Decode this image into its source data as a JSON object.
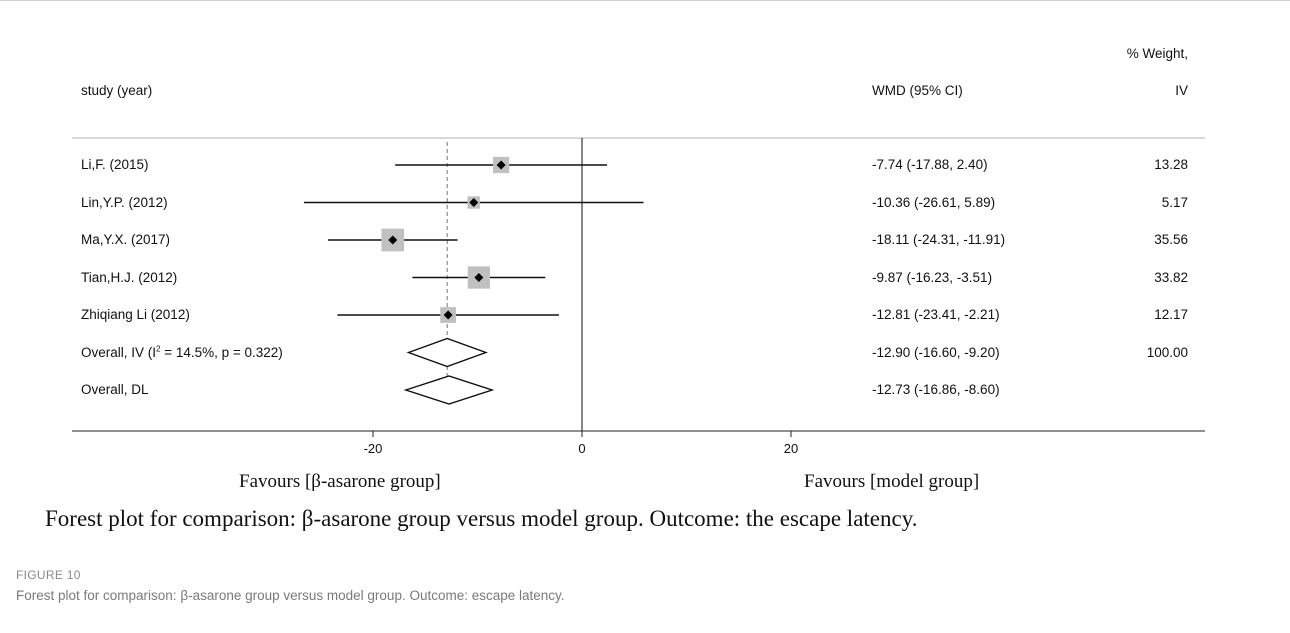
{
  "chart_data": {
    "type": "forest",
    "headers": {
      "study": "study (year)",
      "effect": "WMD (95% CI)",
      "weight_line1": "% Weight,",
      "weight_line2": "IV"
    },
    "studies": [
      {
        "label": "Li,F. (2015)",
        "estimate": -7.74,
        "lower": -17.88,
        "upper": 2.4,
        "ci_text": "-7.74 (-17.88, 2.40)",
        "weight": "13.28"
      },
      {
        "label": "Lin,Y.P. (2012)",
        "estimate": -10.36,
        "lower": -26.61,
        "upper": 5.89,
        "ci_text": "-10.36 (-26.61, 5.89)",
        "weight": "5.17"
      },
      {
        "label": "Ma,Y.X. (2017)",
        "estimate": -18.11,
        "lower": -24.31,
        "upper": -11.91,
        "ci_text": "-18.11 (-24.31, -11.91)",
        "weight": "35.56"
      },
      {
        "label": "Tian,H.J. (2012)",
        "estimate": -9.87,
        "lower": -16.23,
        "upper": -3.51,
        "ci_text": "-9.87 (-16.23, -3.51)",
        "weight": "33.82"
      },
      {
        "label": "Zhiqiang Li (2012)",
        "estimate": -12.81,
        "lower": -23.41,
        "upper": -2.21,
        "ci_text": "-12.81 (-23.41, -2.21)",
        "weight": "12.17"
      }
    ],
    "overall": [
      {
        "label_prefix": "Overall, IV (I",
        "label_sup": "2",
        "label_suffix": " = 14.5%, p = 0.322)",
        "estimate": -12.9,
        "lower": -16.6,
        "upper": -9.2,
        "ci_text": "-12.90 (-16.60, -9.20)",
        "weight": "100.00"
      },
      {
        "label_prefix": "Overall, DL",
        "label_sup": "",
        "label_suffix": "",
        "estimate": -12.73,
        "lower": -16.86,
        "upper": -8.6,
        "ci_text": "-12.73 (-16.86, -8.60)",
        "weight": ""
      }
    ],
    "x_ticks": [
      -20,
      0,
      20
    ],
    "x_tick_labels": [
      "-20",
      "0",
      "20"
    ],
    "xlim": [
      -40,
      40
    ],
    "null_line": 0,
    "reference_line": -12.9,
    "favours_left": "Favours [β-asarone group]",
    "favours_right": "Favours [model group]",
    "title": "Forest plot for comparison: β-asarone group versus model group. Outcome: the escape latency."
  },
  "figure": {
    "label": "FIGURE 10",
    "caption": "Forest plot for comparison: β-asarone group versus model group. Outcome: escape latency."
  }
}
